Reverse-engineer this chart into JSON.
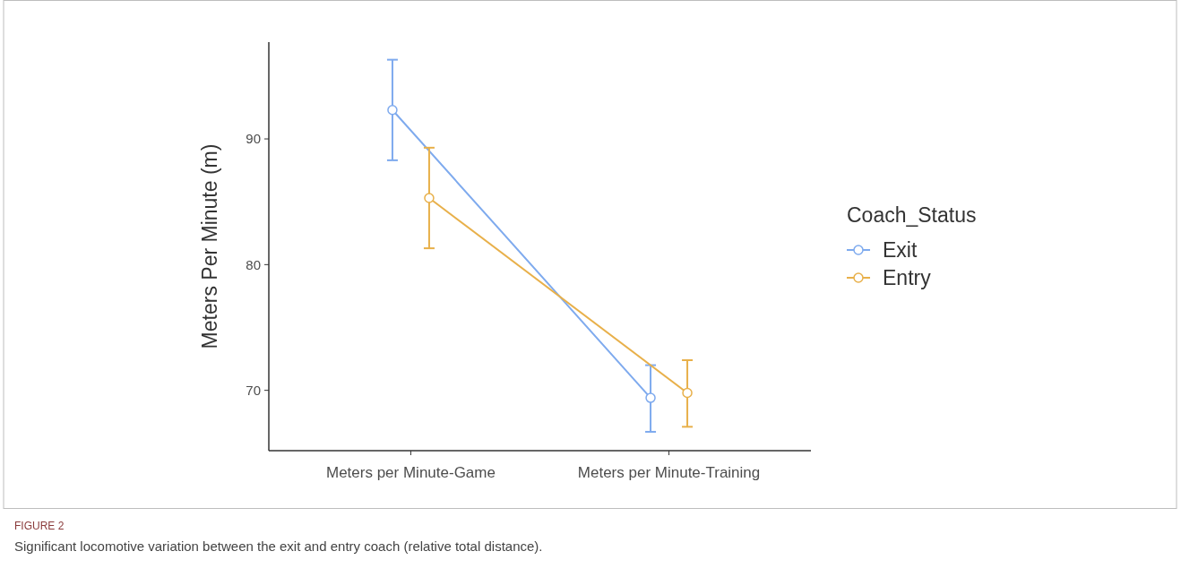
{
  "chart_data": {
    "type": "line",
    "ylabel": "Meters Per Minute (m)",
    "legend_title": "Coach_Status",
    "categories": [
      "Meters per Minute-Game",
      "Meters per Minute-Training"
    ],
    "series": [
      {
        "name": "Exit",
        "color": "#7eaaee",
        "values": [
          92.3,
          69.4
        ],
        "errors": [
          [
            88.3,
            96.3
          ],
          [
            66.7,
            72.0
          ]
        ]
      },
      {
        "name": "Entry",
        "color": "#e8b04a",
        "values": [
          85.3,
          69.8
        ],
        "errors": [
          [
            81.3,
            89.3
          ],
          [
            67.1,
            72.4
          ]
        ]
      }
    ],
    "ylim": [
      65.2,
      97.7
    ],
    "yticks": [
      70,
      80,
      90
    ],
    "grid": false,
    "legend": "right",
    "marker": "circle",
    "line_style": "solid",
    "annotations": [
      "FIGURE 2",
      "Significant locomotive variation between the exit and entry coach (relative total distance)."
    ]
  }
}
